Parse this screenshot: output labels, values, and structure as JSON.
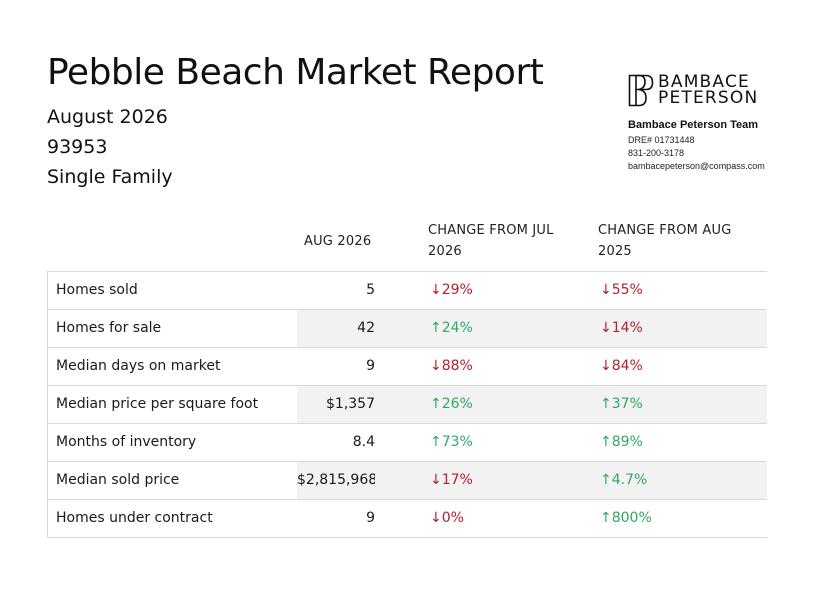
{
  "report": {
    "title": "Pebble Beach Market Report",
    "period": "August 2026",
    "zip": "93953",
    "property_type": "Single Family"
  },
  "brand": {
    "logo_line1": "BAMBACE",
    "logo_line2": "PETERSON",
    "team": "Bambace Peterson Team",
    "dre": "DRE# 01731448",
    "phone": "831-200-3178",
    "email": "bambacepeterson@compass.com"
  },
  "table": {
    "headers": {
      "month": "AUG 2026",
      "change_jul": "CHANGE FROM JUL 2026",
      "change_aug": "CHANGE FROM AUG 2025"
    },
    "rows": [
      {
        "label": "Homes sold",
        "value": "5",
        "chg_jul": "↓29%",
        "chg_jul_dir": "down",
        "chg_aug": "↓55%",
        "chg_aug_dir": "down"
      },
      {
        "label": "Homes for sale",
        "value": "42",
        "chg_jul": "↑24%",
        "chg_jul_dir": "up",
        "chg_aug": "↓14%",
        "chg_aug_dir": "down"
      },
      {
        "label": "Median days on market",
        "value": "9",
        "chg_jul": "↓88%",
        "chg_jul_dir": "down",
        "chg_aug": "↓84%",
        "chg_aug_dir": "down"
      },
      {
        "label": "Median price per square foot",
        "value": "$1,357",
        "chg_jul": "↑26%",
        "chg_jul_dir": "up",
        "chg_aug": "↑37%",
        "chg_aug_dir": "up"
      },
      {
        "label": "Months of inventory",
        "value": "8.4",
        "chg_jul": "↑73%",
        "chg_jul_dir": "up",
        "chg_aug": "↑89%",
        "chg_aug_dir": "up"
      },
      {
        "label": "Median sold price",
        "value": "$2,815,968",
        "chg_jul": "↓17%",
        "chg_jul_dir": "down",
        "chg_aug": "↑4.7%",
        "chg_aug_dir": "up"
      },
      {
        "label": "Homes under contract",
        "value": "9",
        "chg_jul": "↓0%",
        "chg_jul_dir": "down",
        "chg_aug": "↑800%",
        "chg_aug_dir": "up"
      }
    ]
  },
  "colors": {
    "down": "#b3202e",
    "up": "#2fa862",
    "shade": "#f2f2f2"
  }
}
